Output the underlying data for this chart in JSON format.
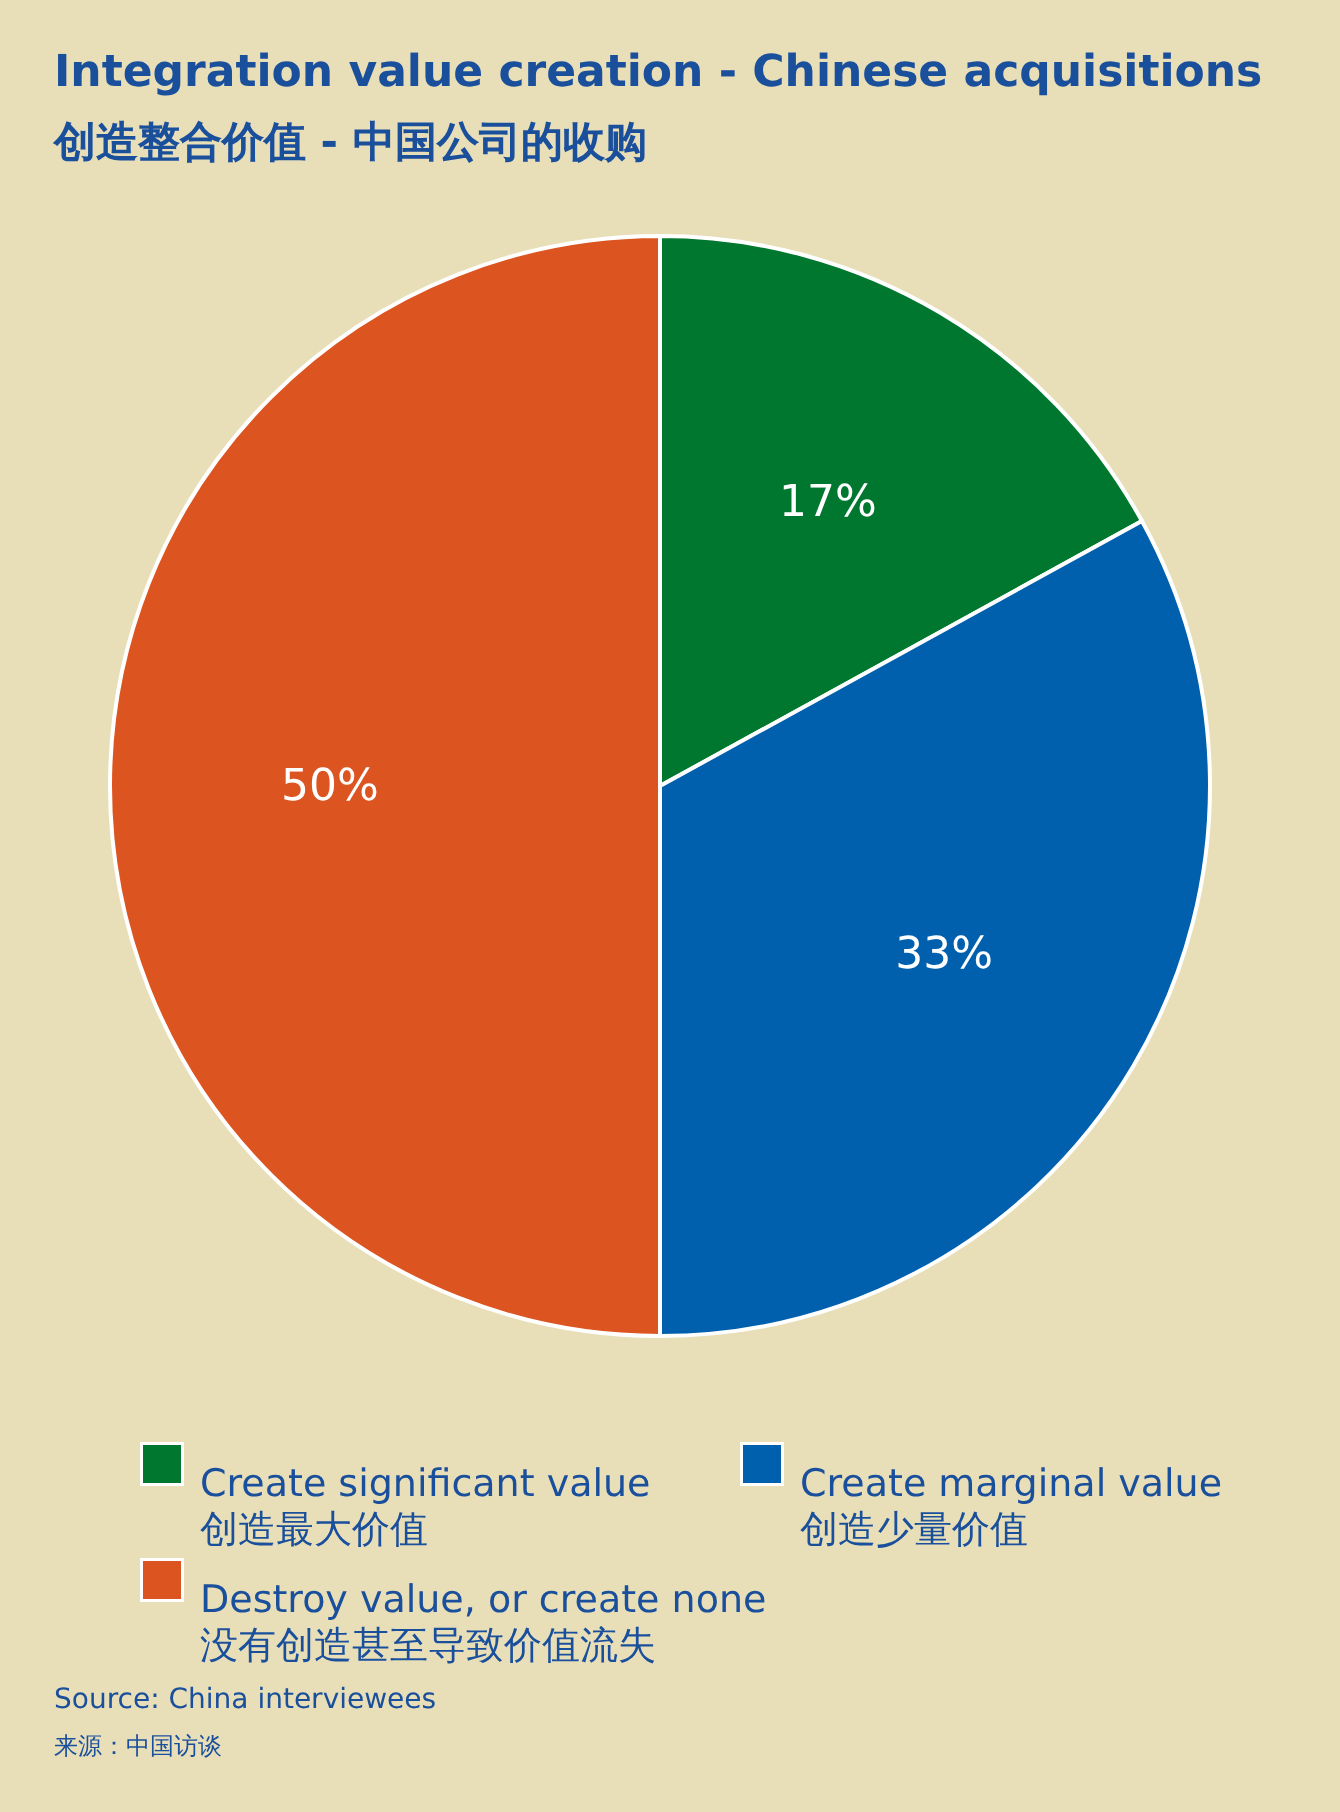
{
  "chart_data": {
    "type": "pie",
    "title": "Integration value creation - Chinese acquisitions",
    "subtitle": "创造整合价值 - 中国公司的收购",
    "categories": [
      "Create significant value\n创造最大价值",
      "Create marginal value\n创造少量价值",
      "Destroy value, or create none\n没有创造甚至导致价值流失"
    ],
    "values": [
      17,
      33,
      50
    ],
    "value_labels": [
      "17%",
      "33%",
      "50%"
    ],
    "colors": [
      "#00772f",
      "#0060ae",
      "#dc5420"
    ],
    "legend": "bottom",
    "annotations": [
      "Source: China interviewees",
      "来源：中国访谈"
    ]
  }
}
